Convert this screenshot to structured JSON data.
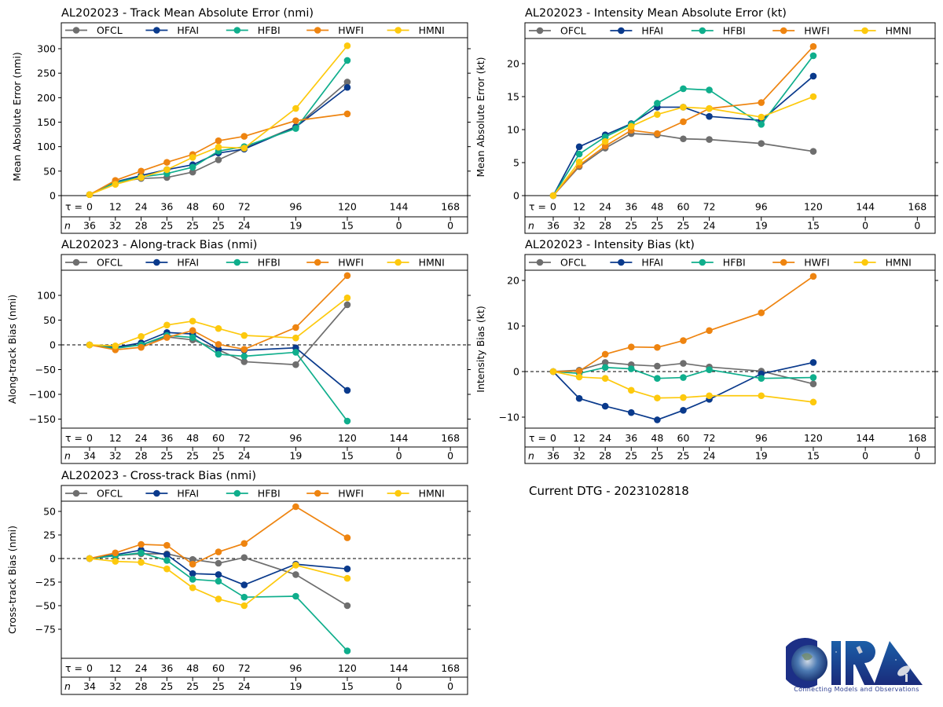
{
  "current_dtg_label": "Current DTG - 2023102818",
  "logo": {
    "text": "CIRA",
    "tagline": "Connecting Models and Observations"
  },
  "colors": {
    "OFCL": "#6e6e6e",
    "HFAI": "#0a3a8c",
    "HFBI": "#0fae8c",
    "HWFI": "#ee8410",
    "HMNI": "#fdc90d"
  },
  "chart_data": [
    {
      "id": "track-mae",
      "type": "line",
      "title": "AL202023 - Track Mean Absolute Error (nmi)",
      "xlabel": "",
      "ylabel": "Mean Absolute Error (nmi)",
      "x": [
        0,
        12,
        24,
        36,
        48,
        60,
        72,
        96,
        120
      ],
      "xticks": [
        0,
        12,
        24,
        36,
        48,
        60,
        72,
        96,
        120,
        144,
        168
      ],
      "n_counts": [
        36,
        32,
        28,
        25,
        25,
        25,
        24,
        19,
        15,
        0,
        0
      ],
      "tau_label": "τ = ",
      "n_label": "n",
      "yticks": [
        0,
        50,
        100,
        150,
        200,
        250,
        300
      ],
      "ylim": [
        0,
        322
      ],
      "zero_line": false,
      "legend": "top",
      "series": [
        {
          "name": "OFCL",
          "values": [
            2,
            27,
            35,
            37,
            48,
            73,
            97,
            141,
            232
          ]
        },
        {
          "name": "HFAI",
          "values": [
            2,
            28,
            41,
            53,
            63,
            87,
            95,
            140,
            221
          ]
        },
        {
          "name": "HFBI",
          "values": [
            2,
            27,
            38,
            45,
            58,
            91,
            100,
            137,
            276
          ]
        },
        {
          "name": "HWFI",
          "values": [
            2,
            31,
            50,
            68,
            84,
            112,
            121,
            153,
            167
          ]
        },
        {
          "name": "HMNI",
          "values": [
            2,
            23,
            37,
            53,
            78,
            99,
            97,
            178,
            306
          ]
        }
      ]
    },
    {
      "id": "intensity-mae",
      "type": "line",
      "title": "AL202023 - Intensity Mean Absolute Error (kt)",
      "xlabel": "",
      "ylabel": "Mean Absolute Error (kt)",
      "x": [
        0,
        12,
        24,
        36,
        48,
        60,
        72,
        96,
        120
      ],
      "xticks": [
        0,
        12,
        24,
        36,
        48,
        60,
        72,
        96,
        120,
        144,
        168
      ],
      "n_counts": [
        36,
        32,
        28,
        25,
        25,
        25,
        24,
        19,
        15,
        0,
        0
      ],
      "tau_label": "τ = ",
      "n_label": "n",
      "yticks": [
        0,
        5,
        10,
        15,
        20
      ],
      "ylim": [
        0,
        23.9
      ],
      "zero_line": false,
      "legend": "top",
      "series": [
        {
          "name": "OFCL",
          "values": [
            0,
            4.4,
            7.2,
            9.4,
            9.2,
            8.6,
            8.5,
            7.9,
            6.7
          ]
        },
        {
          "name": "HFAI",
          "values": [
            0,
            7.4,
            9.2,
            10.9,
            13.4,
            13.4,
            12.0,
            11.4,
            18.1
          ]
        },
        {
          "name": "HFBI",
          "values": [
            0,
            6.3,
            8.9,
            10.8,
            14.0,
            16.2,
            16.0,
            10.8,
            21.2
          ]
        },
        {
          "name": "HWFI",
          "values": [
            0,
            4.6,
            7.5,
            9.9,
            9.4,
            11.2,
            13.2,
            14.1,
            22.6
          ]
        },
        {
          "name": "HMNI",
          "values": [
            0,
            5.1,
            8.2,
            10.5,
            12.3,
            13.4,
            13.2,
            11.9,
            15.0
          ]
        }
      ]
    },
    {
      "id": "along-track-bias",
      "type": "line",
      "title": "AL202023 - Along-track Bias (nmi)",
      "xlabel": "",
      "ylabel": "Along-track Bias (nmi)",
      "x": [
        0,
        12,
        24,
        36,
        48,
        60,
        72,
        96,
        120
      ],
      "xticks": [
        0,
        12,
        24,
        36,
        48,
        60,
        72,
        96,
        120,
        144,
        168
      ],
      "n_counts": [
        34,
        32,
        28,
        25,
        25,
        25,
        24,
        19,
        15,
        0,
        0
      ],
      "tau_label": "τ = ",
      "n_label": "n",
      "yticks": [
        -150,
        -100,
        -50,
        0,
        50,
        100
      ],
      "ylim": [
        -168,
        150
      ],
      "zero_line": true,
      "legend": "top",
      "series": [
        {
          "name": "OFCL",
          "values": [
            0,
            -5,
            0,
            16,
            10,
            -10,
            -34,
            -40,
            81
          ]
        },
        {
          "name": "HFAI",
          "values": [
            0,
            -5,
            4,
            25,
            22,
            -9,
            -11,
            -6,
            -92
          ]
        },
        {
          "name": "HFBI",
          "values": [
            0,
            -7,
            0,
            19,
            15,
            -19,
            -23,
            -15,
            -154
          ]
        },
        {
          "name": "HWFI",
          "values": [
            0,
            -10,
            -5,
            15,
            29,
            1,
            -9,
            35,
            140
          ]
        },
        {
          "name": "HMNI",
          "values": [
            0,
            -2,
            17,
            40,
            48,
            33,
            19,
            14,
            95
          ]
        }
      ]
    },
    {
      "id": "intensity-bias",
      "type": "line",
      "title": "AL202023 - Intensity Bias (kt)",
      "xlabel": "",
      "ylabel": "Intensity Bias (kt)",
      "x": [
        0,
        12,
        24,
        36,
        48,
        60,
        72,
        96,
        120
      ],
      "xticks": [
        0,
        12,
        24,
        36,
        48,
        60,
        72,
        96,
        120,
        144,
        168
      ],
      "n_counts": [
        36,
        32,
        28,
        25,
        25,
        25,
        24,
        19,
        15,
        0,
        0
      ],
      "tau_label": "τ = ",
      "n_label": "n",
      "yticks": [
        -10,
        0,
        10,
        20
      ],
      "ylim": [
        -12.2,
        22
      ],
      "zero_line": true,
      "legend": "top",
      "series": [
        {
          "name": "OFCL",
          "values": [
            0,
            0.3,
            2.0,
            1.5,
            1.2,
            1.8,
            1.0,
            0.1,
            -2.7
          ]
        },
        {
          "name": "HFAI",
          "values": [
            0,
            -5.9,
            -7.6,
            -9.0,
            -10.6,
            -8.5,
            -6.1,
            -0.5,
            2.0
          ]
        },
        {
          "name": "HFBI",
          "values": [
            0,
            -0.4,
            0.9,
            0.6,
            -1.5,
            -1.3,
            0.4,
            -1.5,
            -1.3
          ]
        },
        {
          "name": "HWFI",
          "values": [
            0,
            0.1,
            3.8,
            5.4,
            5.3,
            6.8,
            9.0,
            12.9,
            20.9
          ]
        },
        {
          "name": "HMNI",
          "values": [
            0,
            -1.2,
            -1.5,
            -4.1,
            -5.8,
            -5.7,
            -5.3,
            -5.3,
            -6.7
          ]
        }
      ]
    },
    {
      "id": "cross-track-bias",
      "type": "line",
      "title": "AL202023 - Cross-track Bias (nmi)",
      "xlabel": "",
      "ylabel": "Cross-track Bias (nmi)",
      "x": [
        0,
        12,
        24,
        36,
        48,
        60,
        72,
        96,
        120
      ],
      "xticks": [
        0,
        12,
        24,
        36,
        48,
        60,
        72,
        96,
        120,
        144,
        168
      ],
      "n_counts": [
        34,
        32,
        28,
        25,
        25,
        25,
        24,
        19,
        15,
        0,
        0
      ],
      "tau_label": "τ = ",
      "n_label": "n",
      "yticks": [
        -75,
        -50,
        -25,
        0,
        25,
        50
      ],
      "ylim": [
        -105,
        61
      ],
      "zero_line": true,
      "legend": "top",
      "series": [
        {
          "name": "OFCL",
          "values": [
            0,
            3,
            5,
            5,
            -1,
            -5,
            1,
            -17,
            -50
          ]
        },
        {
          "name": "HFAI",
          "values": [
            0,
            4,
            9,
            4,
            -16,
            -17,
            -28,
            -6,
            -11
          ]
        },
        {
          "name": "HFBI",
          "values": [
            0,
            3,
            6,
            -2,
            -22,
            -24,
            -41,
            -40,
            -98
          ]
        },
        {
          "name": "HWFI",
          "values": [
            0,
            6,
            15,
            14,
            -6,
            7,
            16,
            55,
            22
          ]
        },
        {
          "name": "HMNI",
          "values": [
            0,
            -3,
            -4,
            -11,
            -31,
            -43,
            -50,
            -7,
            -21
          ]
        }
      ]
    }
  ]
}
